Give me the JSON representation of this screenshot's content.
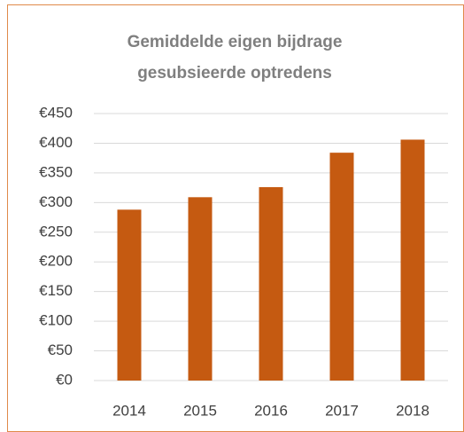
{
  "chart_data": {
    "type": "bar",
    "title": "Gemiddelde eigen bijdrage gesubsieerde optredens",
    "categories": [
      "2014",
      "2015",
      "2016",
      "2017",
      "2018"
    ],
    "values": [
      288,
      309,
      326,
      384,
      406
    ],
    "color": "#c55a11",
    "ylim": [
      0,
      450
    ],
    "yticks": [
      {
        "value": 0,
        "label": "€0"
      },
      {
        "value": 50,
        "label": "€50"
      },
      {
        "value": 100,
        "label": "€100"
      },
      {
        "value": 150,
        "label": "€150"
      },
      {
        "value": 200,
        "label": "€200"
      },
      {
        "value": 250,
        "label": "€250"
      },
      {
        "value": 300,
        "label": "€300"
      },
      {
        "value": 350,
        "label": "€350"
      },
      {
        "value": 400,
        "label": "€400"
      },
      {
        "value": 450,
        "label": "€450"
      }
    ],
    "grid": true
  }
}
